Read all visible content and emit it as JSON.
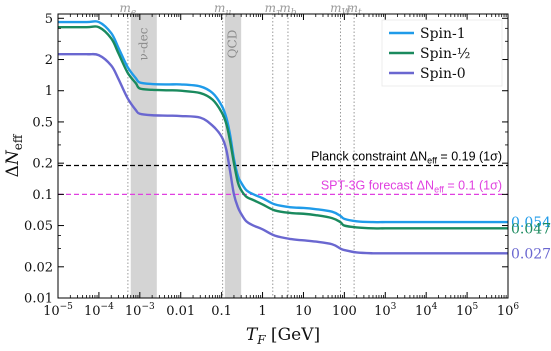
{
  "chart_data": {
    "type": "line",
    "xlabel": "T_F [GeV]",
    "ylabel": "ΔN_eff",
    "x_scale": "log",
    "y_scale": "log",
    "xlim": [
      1e-05,
      1000000
    ],
    "ylim": [
      0.01,
      5.5
    ],
    "x_ticks": [
      {
        "value": 1e-05,
        "base": "10",
        "exp": "−5"
      },
      {
        "value": 0.0001,
        "base": "10",
        "exp": "−4"
      },
      {
        "value": 0.001,
        "base": "10",
        "exp": "−3"
      },
      {
        "value": 0.01,
        "base": "0.01",
        "exp": ""
      },
      {
        "value": 0.1,
        "base": "0.1",
        "exp": ""
      },
      {
        "value": 1,
        "base": "1",
        "exp": ""
      },
      {
        "value": 10,
        "base": "10",
        "exp": ""
      },
      {
        "value": 100,
        "base": "100",
        "exp": ""
      },
      {
        "value": 1000,
        "base": "10",
        "exp": "3"
      },
      {
        "value": 10000,
        "base": "10",
        "exp": "4"
      },
      {
        "value": 100000,
        "base": "10",
        "exp": "5"
      },
      {
        "value": 1000000,
        "base": "10",
        "exp": "6"
      }
    ],
    "y_ticks": [
      {
        "value": 0.01,
        "label": "0.01"
      },
      {
        "value": 0.02,
        "label": "0.02"
      },
      {
        "value": 0.05,
        "label": "0.05"
      },
      {
        "value": 0.1,
        "label": "0.1"
      },
      {
        "value": 0.2,
        "label": "0.2"
      },
      {
        "value": 0.5,
        "label": "0.5"
      },
      {
        "value": 1,
        "label": "1"
      },
      {
        "value": 2,
        "label": "2"
      },
      {
        "value": 5,
        "label": "5"
      }
    ],
    "series": [
      {
        "name": "Spin-1",
        "color": "#1f9be9",
        "end_label": "0.054",
        "x": [
          1e-05,
          5e-05,
          0.0001,
          0.0002,
          0.0003,
          0.0005,
          0.0008,
          0.001,
          0.002,
          0.005,
          0.01,
          0.03,
          0.06,
          0.1,
          0.13,
          0.16,
          0.2,
          0.25,
          0.3,
          0.4,
          0.6,
          1,
          2,
          5,
          10,
          20,
          50,
          80,
          100,
          200,
          500,
          1000,
          10000,
          100000,
          1000000
        ],
        "y": [
          4.6,
          4.6,
          4.6,
          3.6,
          2.6,
          1.7,
          1.32,
          1.2,
          1.16,
          1.15,
          1.15,
          1.1,
          0.95,
          0.72,
          0.55,
          0.38,
          0.22,
          0.15,
          0.13,
          0.11,
          0.1,
          0.092,
          0.08,
          0.075,
          0.074,
          0.072,
          0.068,
          0.062,
          0.058,
          0.055,
          0.054,
          0.054,
          0.054,
          0.054,
          0.054
        ]
      },
      {
        "name": "Spin-½",
        "color": "#1a8a5e",
        "end_label": "0.047",
        "x": [
          1e-05,
          5e-05,
          0.0001,
          0.0002,
          0.0003,
          0.0005,
          0.0008,
          0.001,
          0.002,
          0.005,
          0.01,
          0.03,
          0.06,
          0.1,
          0.13,
          0.16,
          0.2,
          0.25,
          0.3,
          0.4,
          0.6,
          1,
          2,
          5,
          10,
          20,
          50,
          80,
          100,
          200,
          500,
          1000,
          10000,
          100000,
          1000000
        ],
        "y": [
          4.1,
          4.1,
          4.1,
          3.2,
          2.3,
          1.5,
          1.18,
          1.05,
          1.02,
          1.01,
          1.0,
          0.95,
          0.82,
          0.62,
          0.48,
          0.33,
          0.2,
          0.13,
          0.11,
          0.095,
          0.088,
          0.08,
          0.07,
          0.066,
          0.065,
          0.063,
          0.059,
          0.054,
          0.05,
          0.048,
          0.047,
          0.047,
          0.047,
          0.047,
          0.047
        ]
      },
      {
        "name": "Spin-0",
        "color": "#6a67d0",
        "end_label": "0.027",
        "x": [
          1e-05,
          5e-05,
          0.0001,
          0.0002,
          0.0003,
          0.0005,
          0.0008,
          0.001,
          0.002,
          0.005,
          0.01,
          0.03,
          0.06,
          0.1,
          0.13,
          0.16,
          0.2,
          0.25,
          0.3,
          0.4,
          0.6,
          1,
          2,
          5,
          10,
          20,
          50,
          80,
          100,
          200,
          500,
          1000,
          10000,
          100000,
          1000000
        ],
        "y": [
          2.25,
          2.25,
          2.2,
          1.75,
          1.3,
          0.85,
          0.65,
          0.6,
          0.58,
          0.575,
          0.57,
          0.55,
          0.46,
          0.36,
          0.27,
          0.17,
          0.1,
          0.075,
          0.065,
          0.055,
          0.05,
          0.046,
          0.04,
          0.037,
          0.036,
          0.035,
          0.033,
          0.03,
          0.029,
          0.0275,
          0.027,
          0.027,
          0.027,
          0.027,
          0.027
        ]
      }
    ],
    "bands": [
      {
        "label": "ν-dec",
        "x_min": 0.0006,
        "x_max": 0.0026
      },
      {
        "label": "QCD",
        "x_min": 0.12,
        "x_max": 0.3
      }
    ],
    "top_markers": [
      {
        "label": "m_e",
        "x": 0.000511
      },
      {
        "label": "m_μ",
        "x": 0.1057
      },
      {
        "label": "m_τ",
        "x": 1.777
      },
      {
        "label": "m_b",
        "x": 4.18
      },
      {
        "label": "m_W",
        "x": 80.4
      },
      {
        "label": "m_t",
        "x": 173
      }
    ],
    "hlines": [
      {
        "y": 0.19,
        "color": "#000000",
        "text": "Planck constraint ΔN_eff = 0.19 (1σ)"
      },
      {
        "y": 0.1,
        "color": "#e040e0",
        "text": "SPT-3G forecast ΔN_eff = 0.1 (1σ)"
      }
    ],
    "legend_position": "top-right",
    "grid": false
  }
}
